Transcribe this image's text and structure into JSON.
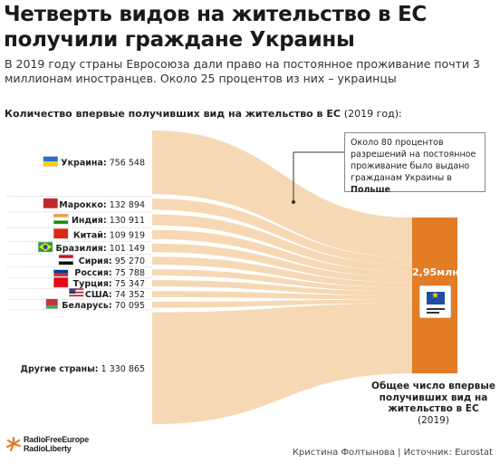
{
  "title": "Четверть видов на жительство в ЕС получили граждане Украины",
  "subtitle": "В 2019 году страны Евросоюза дали право на постоянное проживание почти 3 миллионам иностранцев. Около 25 процентов из них – украинцы",
  "section_heading": "Количество впервые получивших вид на жительство в ЕС",
  "section_heading_year": "(2019 год):",
  "callout_text": "Около 80 процентов разрешений на постоянное проживание было выдано гражданам Украины в",
  "callout_bold": "Польше",
  "total_value_label": "2,95млн",
  "total_label": "Общее число впервые получивших вид на жительство в ЕС",
  "total_label_year": "(2019)",
  "logo_text_1": "RadioFreeEurope",
  "logo_text_2": "RadioLiberty",
  "credits": "Кристина Фолтынова | Источник: Eurostat",
  "colors": {
    "flow": "#f6d8b4",
    "bar": "#e27c26",
    "accent": "#e27c26"
  },
  "chart_data": {
    "type": "sankey",
    "total": 2950000,
    "categories": [
      "Украина",
      "Марокко",
      "Индия",
      "Китай",
      "Бразилия",
      "Сирия",
      "Россия",
      "Турция",
      "США",
      "Беларусь",
      "Другие страны"
    ],
    "values": [
      756548,
      132894,
      130911,
      109919,
      101149,
      95270,
      75788,
      75347,
      74352,
      70095,
      1330865
    ],
    "value_labels": [
      "756 548",
      "132 894",
      "130 911",
      "109 919",
      "101 149",
      "95 270",
      "75 788",
      "75 347",
      "74 352",
      "70 095",
      "1 330 865"
    ],
    "flags": [
      "flag-ua-icon",
      "flag-ma-icon",
      "flag-in-icon",
      "flag-cn-icon",
      "flag-br-icon",
      "flag-sy-icon",
      "flag-ru-icon",
      "flag-tr-icon",
      "flag-us-icon",
      "flag-by-icon",
      ""
    ]
  }
}
